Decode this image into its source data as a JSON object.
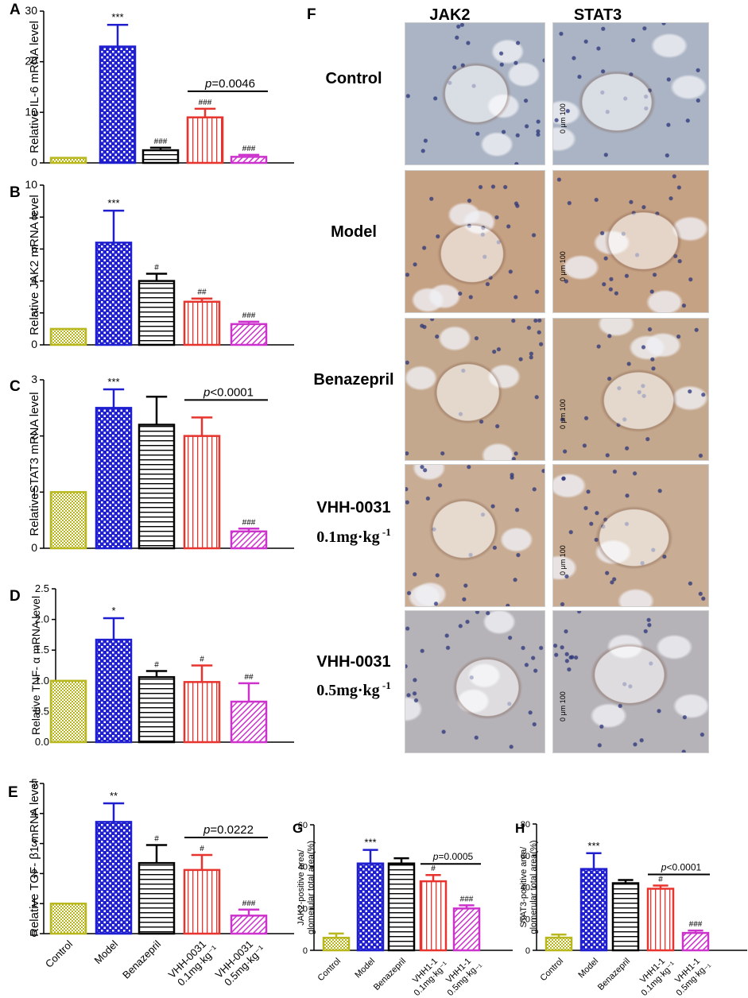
{
  "colors": {
    "control": "#b8b81e",
    "model": "#1f1fd0",
    "benazepril": "#000000",
    "low": "#e8342e",
    "high": "#cc33cc",
    "tissue_control": "#aab4c4",
    "tissue_model": "#c6a285",
    "tissue_benazepril": "#c4a88d",
    "tissue_low": "#c8ac94",
    "tissue_high": "#b5b2b8"
  },
  "x_categories": [
    "Control",
    "Model",
    "Benazepril",
    "VHH-0031\n0.1mg·kg⁻¹",
    "VHH-0031\n0.5mg·kg⁻¹"
  ],
  "x_categories_gh": [
    "Control",
    "Model",
    "Benazepril",
    "VHH1-1\n0.1mg·kg⁻¹",
    "VHH1-1\n0.5mg·kg₋₁"
  ],
  "chart_data": [
    {
      "panel": "A",
      "type": "bar",
      "ylabel": "Relative IL-6 mRNA level",
      "ylim": [
        0,
        30
      ],
      "yticks": [
        0,
        10,
        20,
        30
      ],
      "values": [
        1,
        23,
        2.5,
        9,
        1.2
      ],
      "errors": [
        0,
        4.3,
        0.5,
        1.7,
        0.4
      ],
      "annotations": [
        "",
        "***",
        "###",
        "###",
        "###"
      ],
      "bracket": {
        "from": 3,
        "to": 4,
        "label": "p=0.0046"
      }
    },
    {
      "panel": "B",
      "type": "bar",
      "ylabel": "Relative JAK2 mRNA level",
      "ylim": [
        0,
        10
      ],
      "yticks": [
        0,
        2,
        4,
        6,
        8,
        10
      ],
      "values": [
        1,
        6.4,
        4,
        2.7,
        1.3
      ],
      "errors": [
        0,
        2.0,
        0.45,
        0.2,
        0.15
      ],
      "annotations": [
        "",
        "***",
        "#",
        "##",
        "###"
      ]
    },
    {
      "panel": "C",
      "type": "bar",
      "ylabel": "RelativeSTAT3 mRNA level",
      "ylim": [
        0,
        3
      ],
      "yticks": [
        0,
        1,
        2,
        3
      ],
      "values": [
        1,
        2.5,
        2.2,
        2.0,
        0.3
      ],
      "errors": [
        0,
        0.33,
        0.5,
        0.33,
        0.05
      ],
      "annotations": [
        "",
        "***",
        "",
        "",
        "###"
      ],
      "bracket": {
        "from": 3,
        "to": 4,
        "label": "p<0.0001"
      }
    },
    {
      "panel": "D",
      "type": "bar",
      "ylabel": "Relative TNF- α mRNA level",
      "ylim": [
        0,
        2.5
      ],
      "yticks": [
        0.0,
        0.5,
        1.0,
        1.5,
        2.0,
        2.5
      ],
      "values": [
        1.0,
        1.67,
        1.06,
        0.98,
        0.66
      ],
      "errors": [
        0,
        0.35,
        0.1,
        0.27,
        0.3
      ],
      "annotations": [
        "",
        "*",
        "#",
        "#",
        "##"
      ]
    },
    {
      "panel": "E",
      "type": "bar",
      "ylabel": "Relative TGF- β1 mRNA level",
      "ylim": [
        0,
        5
      ],
      "yticks": [
        0,
        1,
        2,
        3,
        4,
        5
      ],
      "values": [
        1,
        3.72,
        2.35,
        2.12,
        0.6
      ],
      "errors": [
        0,
        0.62,
        0.6,
        0.5,
        0.2
      ],
      "annotations": [
        "",
        "**",
        "#",
        "#",
        "###"
      ],
      "bracket": {
        "from": 3,
        "to": 4,
        "label": "p=0.0222"
      }
    },
    {
      "panel": "G",
      "type": "bar",
      "ylabel": "JAK2-positive area/\nglomerular total area(%)",
      "ylim": [
        0,
        60
      ],
      "yticks": [
        0,
        20,
        40,
        60
      ],
      "values": [
        6,
        41.5,
        41.5,
        33,
        20
      ],
      "errors": [
        2,
        6.5,
        2.5,
        3,
        1.5
      ],
      "annotations": [
        "",
        "***",
        "",
        "#",
        "###"
      ],
      "bracket": {
        "from": 3,
        "to": 4,
        "label": "p=0.0005"
      }
    },
    {
      "panel": "H",
      "type": "bar",
      "ylabel": "STAT3-positive area/\nglomerular total area(%)",
      "ylim": [
        0,
        80
      ],
      "yticks": [
        0,
        20,
        40,
        60,
        80
      ],
      "values": [
        8,
        51.5,
        42.5,
        39,
        11
      ],
      "errors": [
        2,
        10,
        2,
        2,
        1.5
      ],
      "annotations": [
        "",
        "***",
        "",
        "#",
        "###"
      ],
      "bracket": {
        "from": 3,
        "to": 4,
        "label": "p<0.0001"
      }
    }
  ],
  "panel_f": {
    "letter": "F",
    "columns": [
      "JAK2",
      "STAT3"
    ],
    "rows": [
      {
        "label": "Control"
      },
      {
        "label": "Model"
      },
      {
        "label": "Benazepril"
      },
      {
        "label": "VHH-0031",
        "label2": "0.1mg·kg",
        "sup": "-1"
      },
      {
        "label": "VHH-0031",
        "label2": "0.5mg·kg",
        "sup": "-1"
      }
    ],
    "scale_bar": "0  μm  100"
  }
}
